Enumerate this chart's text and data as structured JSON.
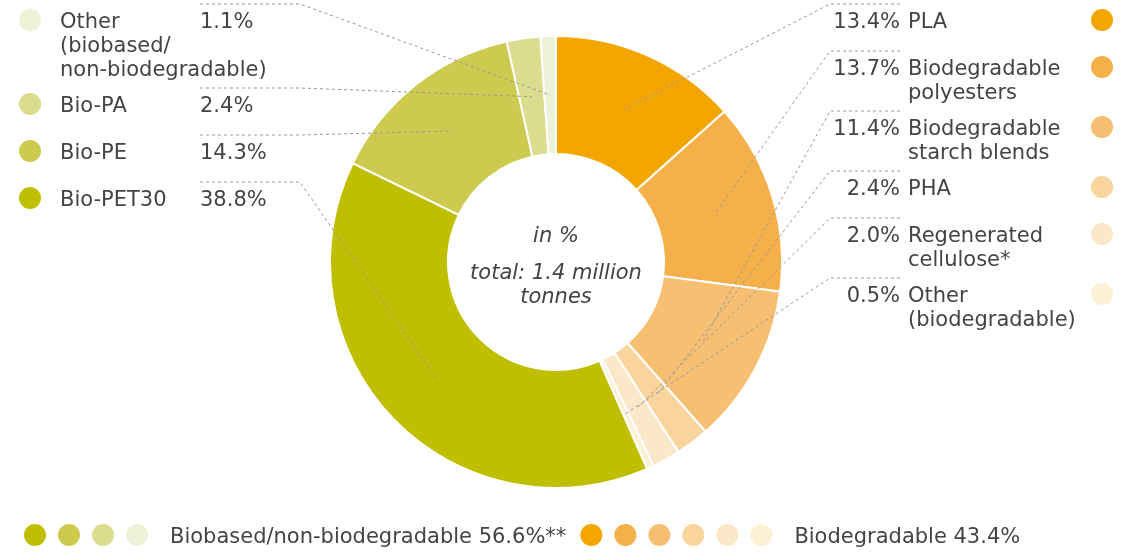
{
  "chart_data": {
    "type": "donut",
    "categories": [
      "PLA",
      "Biodegradable\npolyesters",
      "Biodegradable\nstarch blends",
      "PHA",
      "Regenerated\ncellulose*",
      "Other\n(biodegradable)",
      "Bio-PET30",
      "Bio-PE",
      "Bio-PA",
      "Other\n(biobased/\nnon-biodegradable)"
    ],
    "values": [
      13.4,
      13.7,
      11.4,
      2.4,
      2.0,
      0.5,
      38.8,
      14.3,
      2.4,
      1.1
    ],
    "value_labels": [
      "13.4%",
      "13.7%",
      "11.4%",
      "2.4%",
      "2.0%",
      "0.5%",
      "38.8%",
      "14.3%",
      "2.4%",
      "1.1%"
    ],
    "colors": [
      "#f4a600",
      "#f5b04a",
      "#f6bf72",
      "#f9d49c",
      "#fbe8c9",
      "#fdf0d5",
      "#bfbf00",
      "#cccb4f",
      "#dcdc8f",
      "#ecf1d8"
    ],
    "legend": "left",
    "annotations": [
      "in %",
      "total: 1.4 million tonnes",
      "Biobased/non-biodegradable 56.6%**",
      "Biodegradable 43.4%"
    ]
  }
}
